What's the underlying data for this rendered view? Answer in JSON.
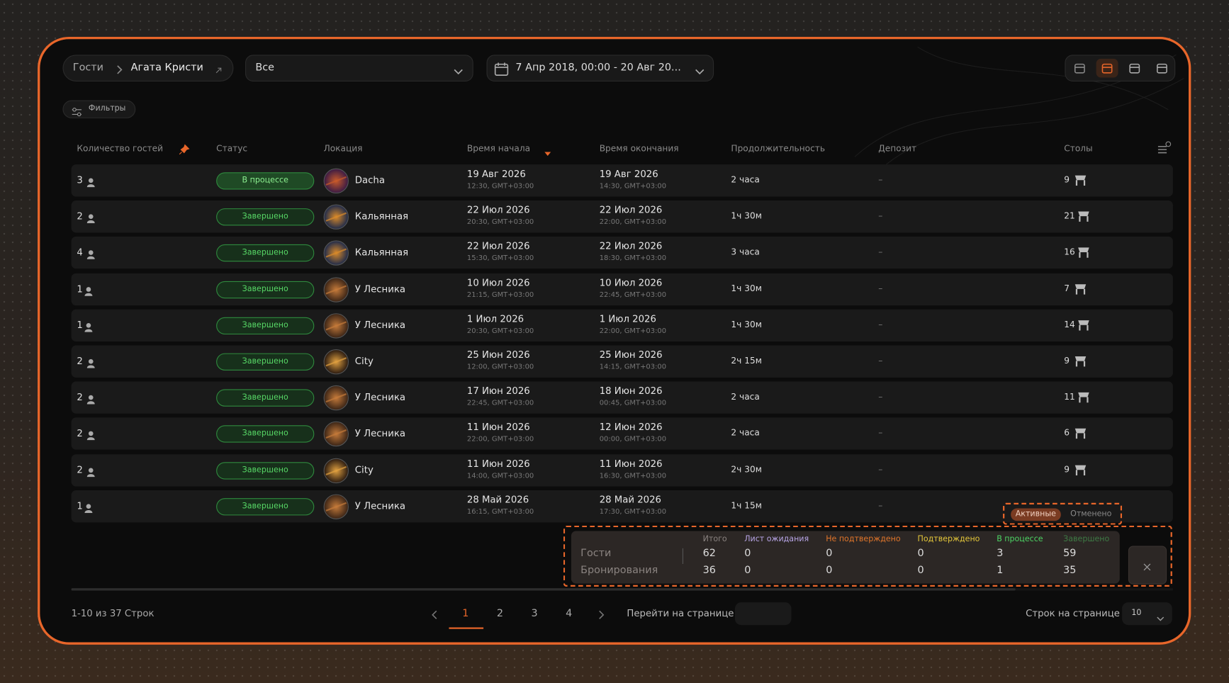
{
  "breadcrumb": {
    "root": "Гости",
    "current": "Агата Кристи"
  },
  "status_filter": "Все",
  "date_range": "7 Апр 2018, 00:00 - 20 Авг 20...",
  "filters_button": "Фильтры",
  "table": {
    "columns": [
      "Количество гостей",
      "Статус",
      "Локация",
      "Время начала",
      "Время окончания",
      "Продолжительность",
      "Депозит",
      "Столы"
    ],
    "rows": [
      {
        "guests": 3,
        "status": "В процессе",
        "location": "Dacha",
        "start_date": "19 Авг 2026",
        "start_time": "12:30, GMT+03:00",
        "end_date": "19 Авг 2026",
        "end_time": "14:30, GMT+03:00",
        "duration": "2 часа",
        "deposit": "–",
        "tables": 9
      },
      {
        "guests": 2,
        "status": "Завершено",
        "location": "Кальянная",
        "start_date": "22 Июл 2026",
        "start_time": "20:30, GMT+03:00",
        "end_date": "22 Июл 2026",
        "end_time": "22:00, GMT+03:00",
        "duration": "1ч 30м",
        "deposit": "–",
        "tables": 21
      },
      {
        "guests": 4,
        "status": "Завершено",
        "location": "Кальянная",
        "start_date": "22 Июл 2026",
        "start_time": "15:30, GMT+03:00",
        "end_date": "22 Июл 2026",
        "end_time": "18:30, GMT+03:00",
        "duration": "3 часа",
        "deposit": "–",
        "tables": 16
      },
      {
        "guests": 1,
        "status": "Завершено",
        "location": "У Лесника",
        "start_date": "10 Июл 2026",
        "start_time": "21:15, GMT+03:00",
        "end_date": "10 Июл 2026",
        "end_time": "22:45, GMT+03:00",
        "duration": "1ч 30м",
        "deposit": "–",
        "tables": 7
      },
      {
        "guests": 1,
        "status": "Завершено",
        "location": "У Лесника",
        "start_date": "1 Июл 2026",
        "start_time": "20:30, GMT+03:00",
        "end_date": "1 Июл 2026",
        "end_time": "22:00, GMT+03:00",
        "duration": "1ч 30м",
        "deposit": "–",
        "tables": 14
      },
      {
        "guests": 2,
        "status": "Завершено",
        "location": "City",
        "start_date": "25 Июн 2026",
        "start_time": "12:00, GMT+03:00",
        "end_date": "25 Июн 2026",
        "end_time": "14:15, GMT+03:00",
        "duration": "2ч 15м",
        "deposit": "–",
        "tables": 9
      },
      {
        "guests": 2,
        "status": "Завершено",
        "location": "У Лесника",
        "start_date": "17 Июн 2026",
        "start_time": "22:45, GMT+03:00",
        "end_date": "18 Июн 2026",
        "end_time": "00:45, GMT+03:00",
        "duration": "2 часа",
        "deposit": "–",
        "tables": 11
      },
      {
        "guests": 2,
        "status": "Завершено",
        "location": "У Лесника",
        "start_date": "11 Июн 2026",
        "start_time": "22:00, GMT+03:00",
        "end_date": "12 Июн 2026",
        "end_time": "00:00, GMT+03:00",
        "duration": "2 часа",
        "deposit": "–",
        "tables": 6
      },
      {
        "guests": 2,
        "status": "Завершено",
        "location": "City",
        "start_date": "11 Июн 2026",
        "start_time": "14:00, GMT+03:00",
        "end_date": "11 Июн 2026",
        "end_time": "16:30, GMT+03:00",
        "duration": "2ч 30м",
        "deposit": "–",
        "tables": 9
      },
      {
        "guests": 1,
        "status": "Завершено",
        "location": "У Лесника",
        "start_date": "28 Май 2026",
        "start_time": "16:15, GMT+03:00",
        "end_date": "28 Май 2026",
        "end_time": "17:30, GMT+03:00",
        "duration": "1ч 15м",
        "deposit": "–",
        "tables": null
      }
    ]
  },
  "summary": {
    "tabs": [
      "Активные",
      "Отменено"
    ],
    "columns": [
      "Итого",
      "Лист ожидания",
      "Не подтверждено",
      "Подтверждено",
      "В процессе",
      "Завершено"
    ],
    "rows": [
      {
        "label": "Гости",
        "values": [
          62,
          0,
          0,
          0,
          3,
          59
        ]
      },
      {
        "label": "Бронирования",
        "values": [
          36,
          0,
          0,
          0,
          1,
          35
        ]
      }
    ]
  },
  "pagination": {
    "range_text": "1-10 из 37 Строк",
    "pages": [
      1,
      2,
      3,
      4
    ],
    "goto_label": "Перейти на странице",
    "rows_per_page_label": "Строк на странице",
    "rows_per_page": 10
  }
}
